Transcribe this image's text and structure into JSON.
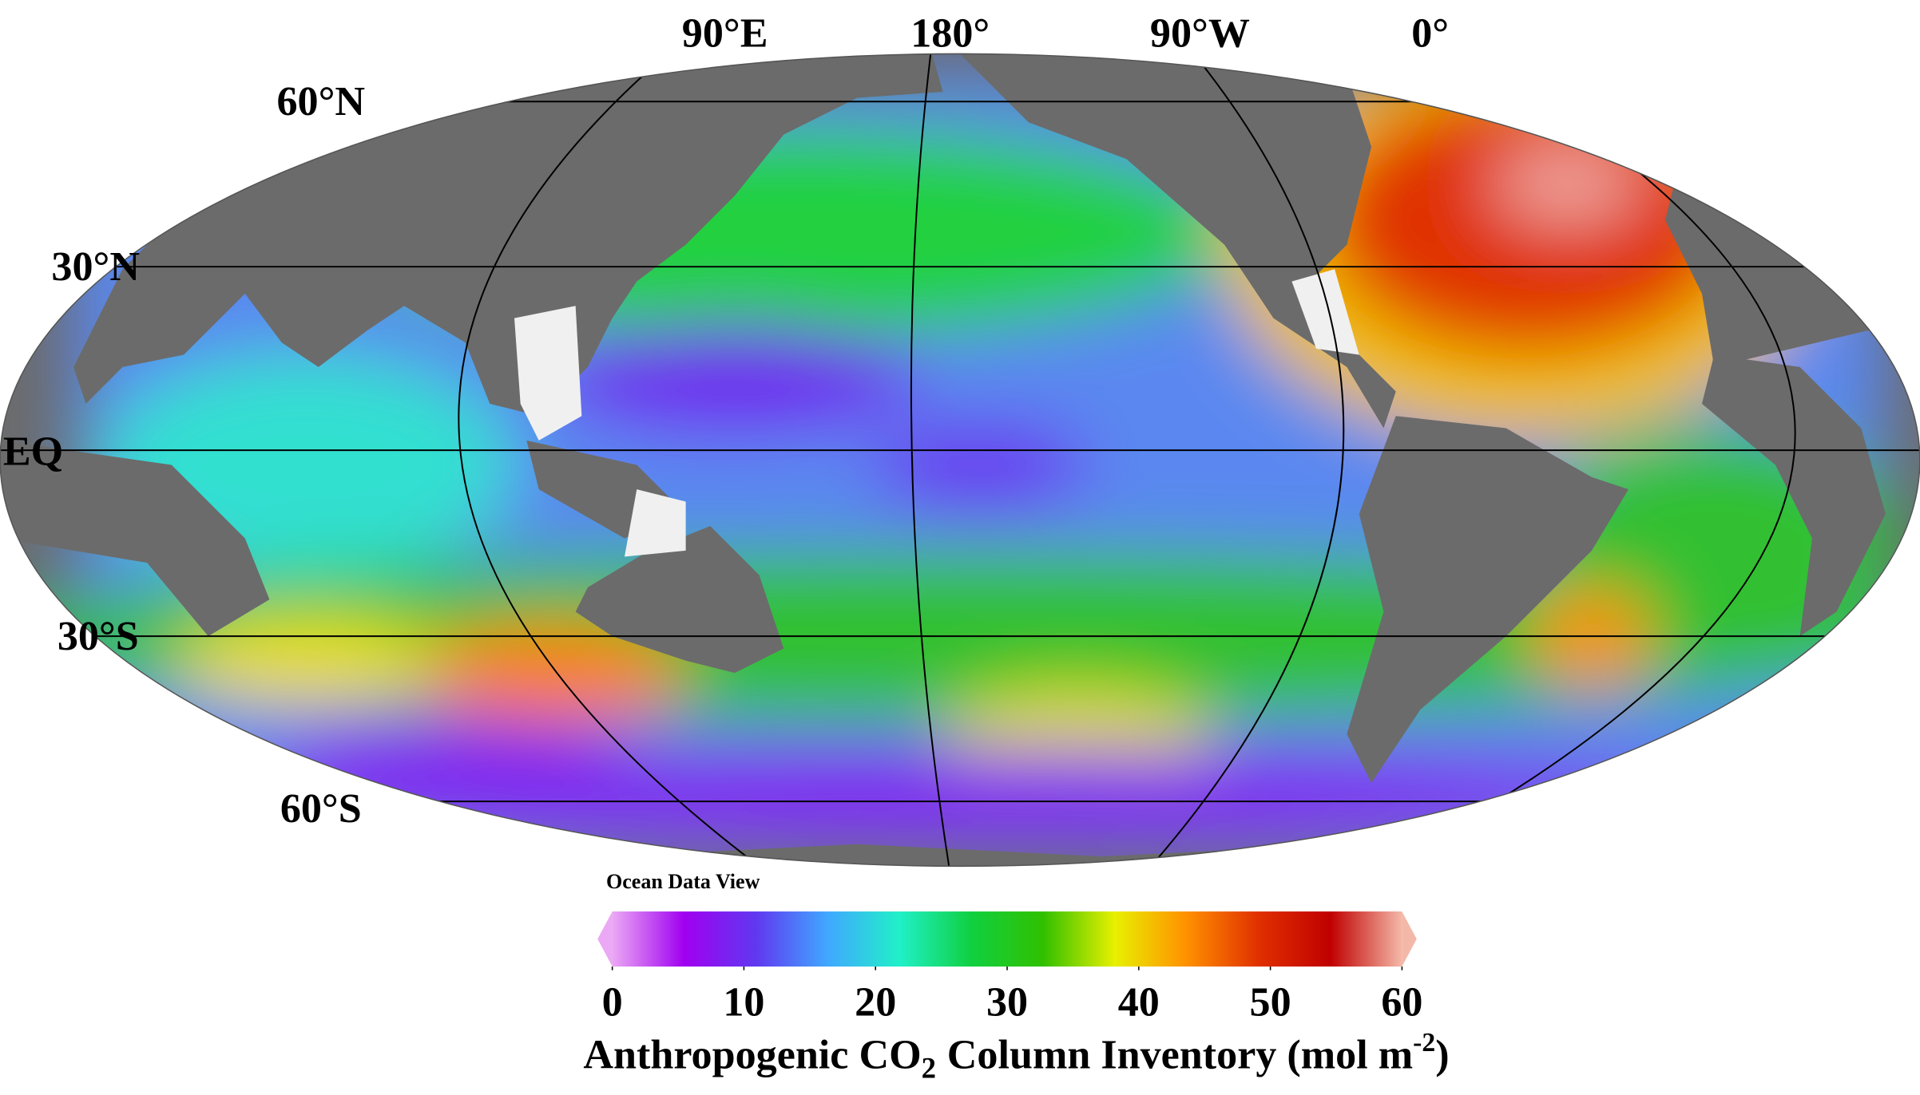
{
  "map": {
    "meridian_labels": [
      "90°E",
      "180°",
      "90°W",
      "0°"
    ],
    "parallel_labels": [
      "60°N",
      "30°N",
      "EQ",
      "30°S",
      "60°S"
    ],
    "credit": "Ocean Data View"
  },
  "colorbar": {
    "lim": [
      0,
      60
    ],
    "ticks": [
      0,
      10,
      20,
      30,
      40,
      50,
      60
    ],
    "colors": [
      "#eba8f4",
      "#a000f0",
      "#6038f0",
      "#40a8ff",
      "#20f0c8",
      "#10d040",
      "#30c000",
      "#e8f000",
      "#ff9000",
      "#e03000",
      "#c00000",
      "#f4b8a8"
    ],
    "title": {
      "text": "Anthropogenic CO",
      "sub": "2",
      "middle": "Column Inventory (mol m",
      "sup": "-2",
      "end": ")"
    }
  }
}
